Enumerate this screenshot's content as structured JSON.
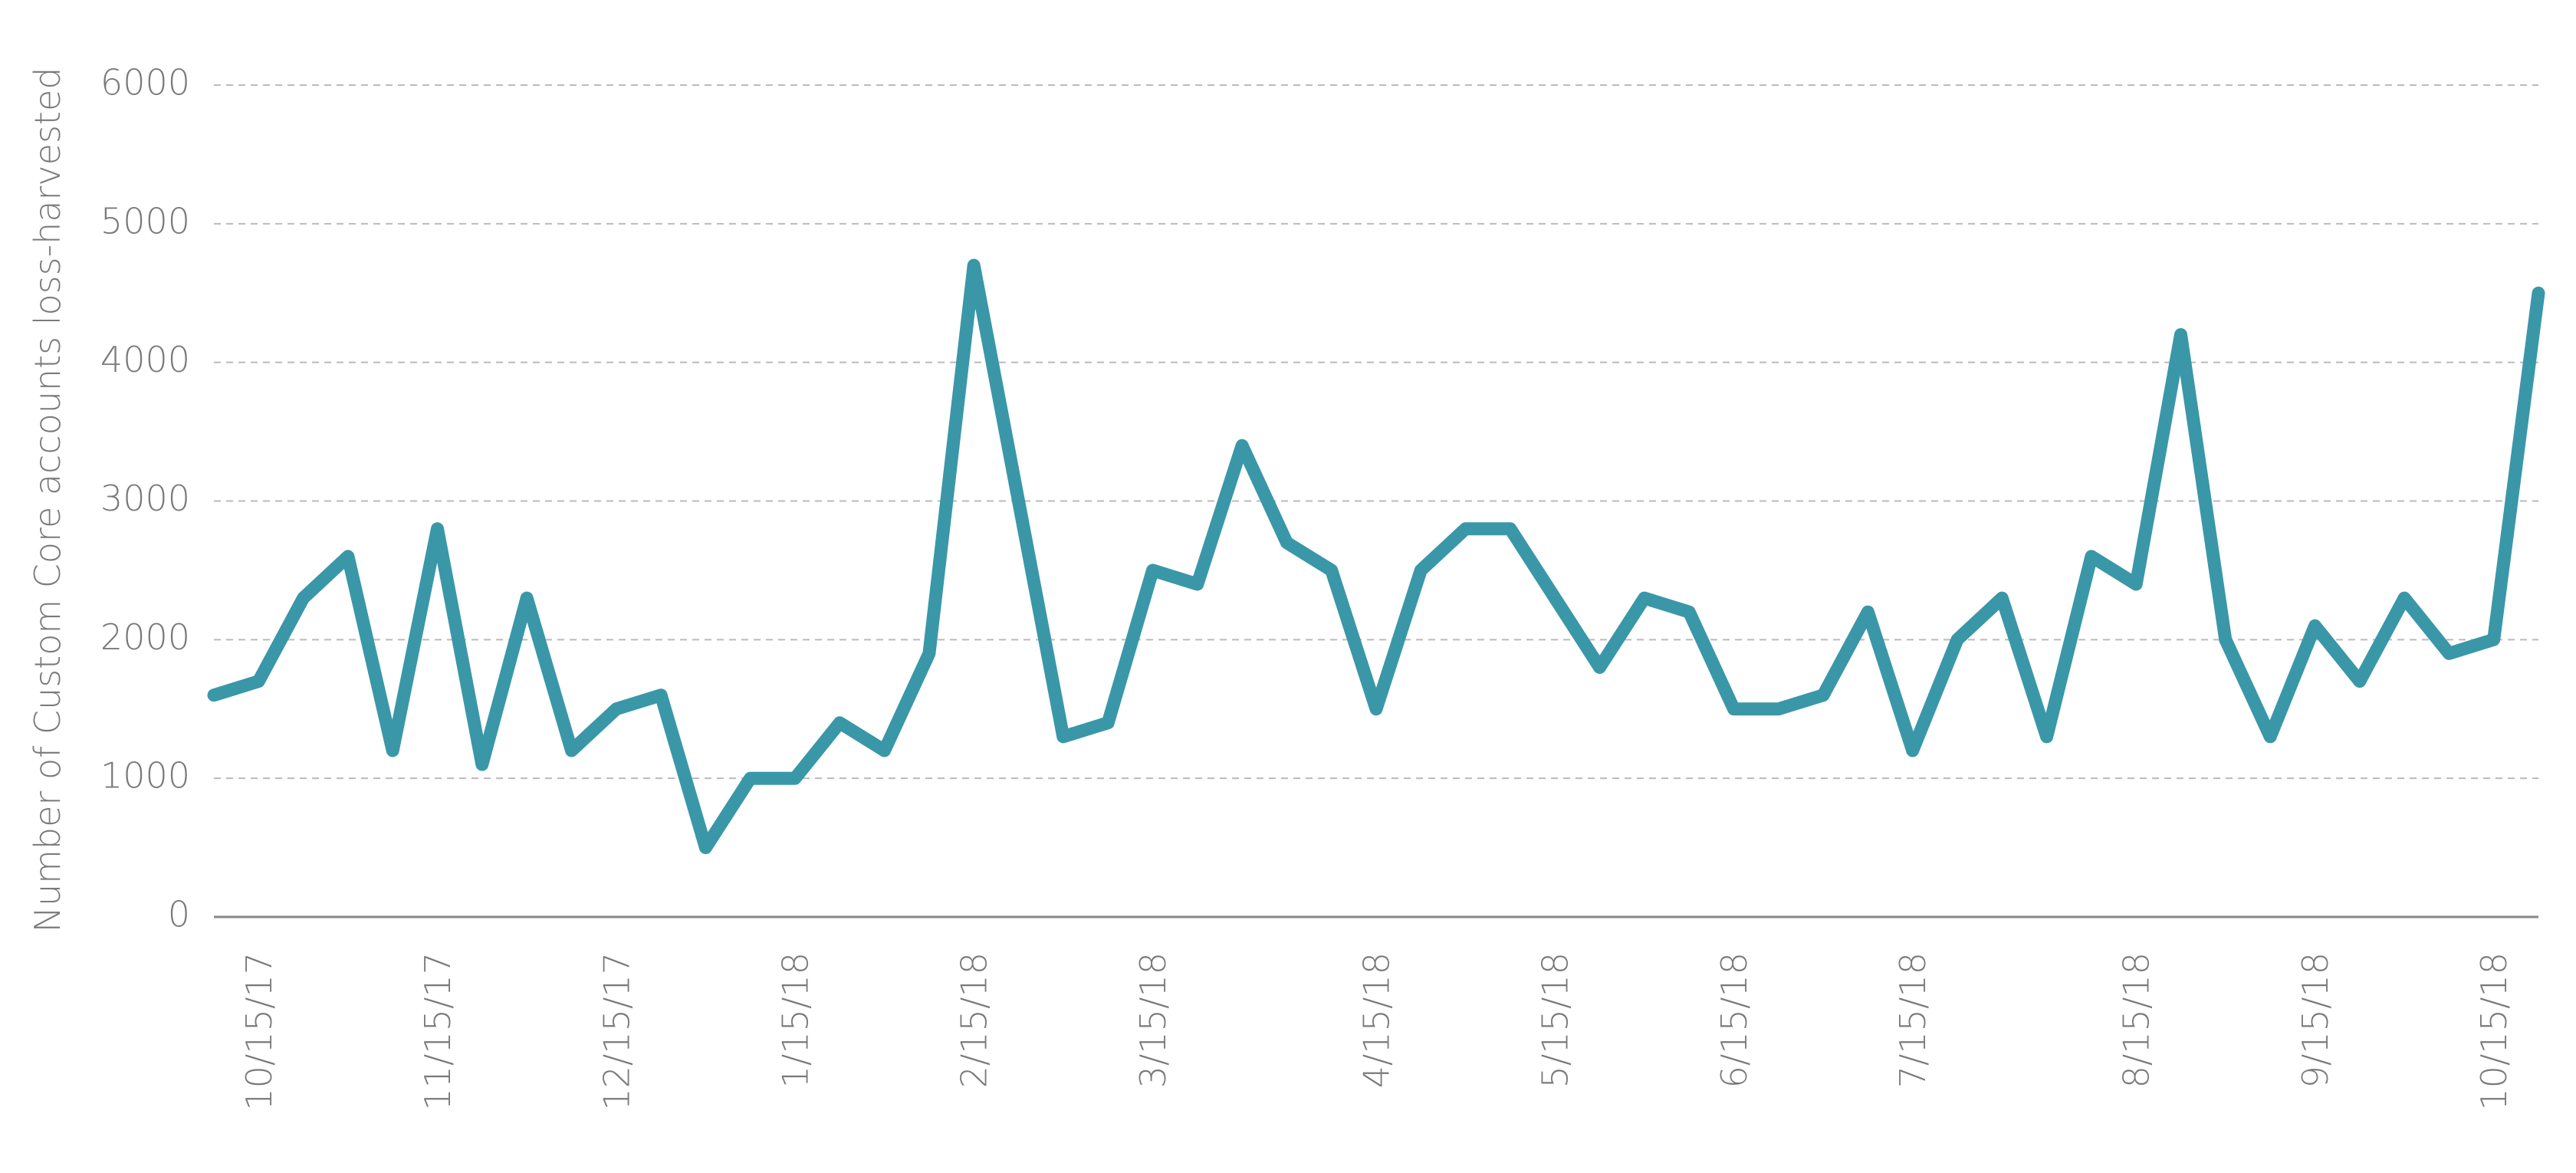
{
  "chart_data": {
    "type": "line",
    "y_label": "Number of Custom Core accounts loss-harvested",
    "categories": [
      null,
      "10/15/17",
      null,
      null,
      null,
      "11/15/17",
      null,
      null,
      null,
      "12/15/17",
      null,
      null,
      null,
      "1/15/18",
      null,
      null,
      null,
      "2/15/18",
      null,
      null,
      null,
      "3/15/18",
      null,
      null,
      null,
      null,
      "4/15/18",
      null,
      null,
      null,
      "5/15/18",
      null,
      null,
      null,
      "6/15/18",
      null,
      null,
      null,
      "7/15/18",
      null,
      null,
      null,
      null,
      "8/15/18",
      null,
      null,
      null,
      "9/15/18",
      null,
      null,
      null,
      "10/15/18",
      null
    ],
    "series": [
      {
        "name": null,
        "color": "#3a97a8",
        "values": [
          1600,
          1700,
          2300,
          2600,
          1200,
          2800,
          1100,
          2300,
          1200,
          1500,
          1600,
          500,
          1000,
          1000,
          1400,
          1200,
          1900,
          4700,
          3000,
          1300,
          1400,
          2500,
          2400,
          3400,
          2700,
          2500,
          1500,
          2500,
          2800,
          2800,
          2300,
          1800,
          2300,
          2200,
          1500,
          1500,
          1600,
          2200,
          1200,
          2000,
          2300,
          1300,
          2600,
          2400,
          4200,
          2000,
          1300,
          2100,
          1700,
          2300,
          1900,
          2000,
          4500
        ]
      }
    ],
    "ylim": [
      0,
      6000
    ],
    "yticks": [
      0,
      1000,
      2000,
      3000,
      4000,
      5000,
      6000
    ],
    "grid": true
  }
}
